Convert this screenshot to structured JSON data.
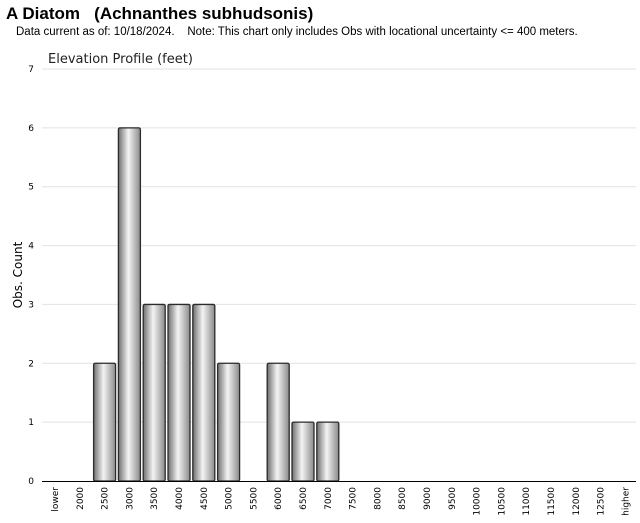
{
  "header": {
    "title": "A Diatom   (Achnanthes subhudsonis)",
    "note": "Data current as of: 10/18/2024.    Note: This chart only includes Obs with locational uncertainty <= 400 meters."
  },
  "chart_data": {
    "type": "bar",
    "title": "Elevation Profile (feet)",
    "xlabel": "",
    "ylabel": "Obs. Count",
    "ylim": [
      0,
      7
    ],
    "yticks": [
      0,
      1,
      2,
      3,
      4,
      5,
      6,
      7
    ],
    "grid": true,
    "categories": [
      "lower",
      "2000",
      "2500",
      "3000",
      "3500",
      "4000",
      "4500",
      "5000",
      "5500",
      "6000",
      "6500",
      "7000",
      "7500",
      "8000",
      "8500",
      "9000",
      "9500",
      "10000",
      "10500",
      "11000",
      "11500",
      "12000",
      "12500",
      "higher"
    ],
    "values": [
      0,
      0,
      2,
      6,
      3,
      3,
      3,
      2,
      0,
      2,
      1,
      1,
      0,
      0,
      0,
      0,
      0,
      0,
      0,
      0,
      0,
      0,
      0,
      0
    ],
    "bar_color": "#b8b8b8"
  }
}
